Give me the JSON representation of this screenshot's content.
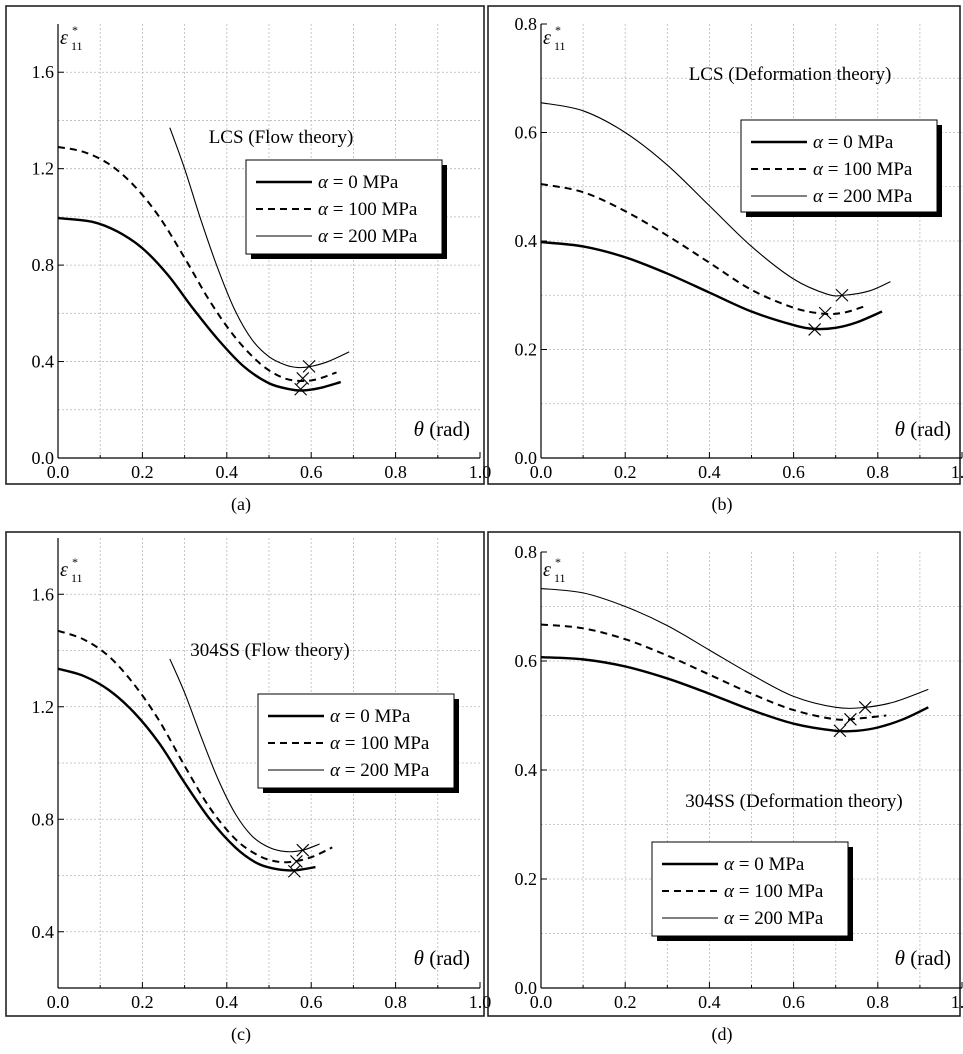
{
  "chart_data": [
    {
      "type": "line",
      "panel_label": "(a)",
      "annotation": "LCS (Flow theory)",
      "ylabel_symbol": "ε",
      "ylabel_sup": "*",
      "ylabel_sub": "11",
      "xlabel_symbol": "θ",
      "xlabel_unit": "(rad)",
      "xlim": [
        0,
        1.0
      ],
      "ylim": [
        0,
        1.8
      ],
      "xticks": [
        "0.0",
        "0.2",
        "0.4",
        "0.6",
        "0.8",
        "1.0"
      ],
      "yticks": [
        "0.0",
        "0.4",
        "0.8",
        "1.2",
        "1.6"
      ],
      "yticks_values": [
        0.0,
        0.4,
        0.8,
        1.2,
        1.6
      ],
      "grid": true,
      "legend_position": "upper-right",
      "series": [
        {
          "name": "α = 0 MPa",
          "style": "solid-thick",
          "x": [
            0.0,
            0.08,
            0.14,
            0.2,
            0.26,
            0.32,
            0.38,
            0.44,
            0.5,
            0.55,
            0.58,
            0.62,
            0.67
          ],
          "y": [
            0.995,
            0.98,
            0.94,
            0.87,
            0.76,
            0.62,
            0.49,
            0.38,
            0.31,
            0.285,
            0.28,
            0.29,
            0.315
          ],
          "critical": [
            0.575,
            0.285
          ]
        },
        {
          "name": "α = 100 MPa",
          "style": "dashed",
          "x": [
            0.0,
            0.06,
            0.12,
            0.18,
            0.24,
            0.3,
            0.36,
            0.42,
            0.48,
            0.53,
            0.57,
            0.61,
            0.66
          ],
          "y": [
            1.29,
            1.27,
            1.22,
            1.13,
            1.0,
            0.83,
            0.65,
            0.5,
            0.39,
            0.335,
            0.32,
            0.325,
            0.355
          ],
          "critical": [
            0.58,
            0.33
          ]
        },
        {
          "name": "α = 200 MPa",
          "style": "solid-thin",
          "x": [
            0.265,
            0.3,
            0.34,
            0.38,
            0.42,
            0.46,
            0.5,
            0.54,
            0.57,
            0.6,
            0.64,
            0.69
          ],
          "y": [
            1.37,
            1.2,
            0.98,
            0.78,
            0.61,
            0.49,
            0.42,
            0.385,
            0.375,
            0.38,
            0.4,
            0.44
          ],
          "critical": [
            0.595,
            0.38
          ]
        }
      ]
    },
    {
      "type": "line",
      "panel_label": "(b)",
      "annotation": "LCS (Deformation theory)",
      "ylabel_symbol": "ε",
      "ylabel_sup": "*",
      "ylabel_sub": "11",
      "xlabel_symbol": "θ",
      "xlabel_unit": "(rad)",
      "xlim": [
        0,
        1.0
      ],
      "ylim": [
        0,
        0.8
      ],
      "xticks": [
        "0.0",
        "0.2",
        "0.4",
        "0.6",
        "0.8",
        "1.0"
      ],
      "yticks": [
        "0.0",
        "0.2",
        "0.4",
        "0.6",
        "0.8"
      ],
      "yticks_values": [
        0.0,
        0.2,
        0.4,
        0.6,
        0.8
      ],
      "grid": true,
      "legend_position": "upper-right",
      "series": [
        {
          "name": "α = 0 MPa",
          "style": "solid-thick",
          "x": [
            0.0,
            0.1,
            0.2,
            0.3,
            0.4,
            0.5,
            0.6,
            0.65,
            0.7,
            0.75,
            0.81
          ],
          "y": [
            0.398,
            0.39,
            0.37,
            0.34,
            0.305,
            0.27,
            0.245,
            0.238,
            0.24,
            0.25,
            0.27
          ],
          "critical": [
            0.65,
            0.237
          ]
        },
        {
          "name": "α = 100 MPa",
          "style": "dashed",
          "x": [
            0.0,
            0.1,
            0.2,
            0.3,
            0.4,
            0.5,
            0.6,
            0.67,
            0.72,
            0.77
          ],
          "y": [
            0.505,
            0.49,
            0.455,
            0.41,
            0.36,
            0.31,
            0.277,
            0.266,
            0.268,
            0.28
          ],
          "critical": [
            0.675,
            0.267
          ]
        },
        {
          "name": "α = 200 MPa",
          "style": "solid-thin",
          "x": [
            0.0,
            0.1,
            0.2,
            0.3,
            0.4,
            0.5,
            0.6,
            0.68,
            0.72,
            0.78,
            0.83
          ],
          "y": [
            0.655,
            0.64,
            0.6,
            0.54,
            0.465,
            0.39,
            0.33,
            0.302,
            0.3,
            0.308,
            0.325
          ],
          "critical": [
            0.715,
            0.3
          ]
        }
      ]
    },
    {
      "type": "line",
      "panel_label": "(c)",
      "annotation": "304SS (Flow theory)",
      "ylabel_symbol": "ε",
      "ylabel_sup": "*",
      "ylabel_sub": "11",
      "xlabel_symbol": "θ",
      "xlabel_unit": "(rad)",
      "xlim": [
        0,
        1.0
      ],
      "ylim": [
        0.2,
        1.8
      ],
      "xticks": [
        "0.0",
        "0.2",
        "0.4",
        "0.6",
        "0.8",
        "1.0"
      ],
      "yticks": [
        "0.4",
        "0.8",
        "1.2",
        "1.6"
      ],
      "yticks_values": [
        0.4,
        0.8,
        1.2,
        1.6
      ],
      "grid": true,
      "legend_position": "upper-right",
      "series": [
        {
          "name": "α = 0 MPa",
          "style": "solid-thick",
          "x": [
            0.0,
            0.06,
            0.12,
            0.18,
            0.24,
            0.3,
            0.36,
            0.42,
            0.47,
            0.51,
            0.55,
            0.58,
            0.61
          ],
          "y": [
            1.335,
            1.31,
            1.26,
            1.18,
            1.07,
            0.93,
            0.8,
            0.7,
            0.645,
            0.625,
            0.618,
            0.622,
            0.63
          ],
          "critical": [
            0.56,
            0.615
          ]
        },
        {
          "name": "α = 100 MPa",
          "style": "dashed",
          "x": [
            0.0,
            0.06,
            0.12,
            0.18,
            0.24,
            0.3,
            0.36,
            0.42,
            0.47,
            0.51,
            0.55,
            0.6,
            0.65
          ],
          "y": [
            1.47,
            1.44,
            1.38,
            1.28,
            1.15,
            0.99,
            0.84,
            0.73,
            0.675,
            0.652,
            0.648,
            0.665,
            0.7
          ],
          "critical": [
            0.565,
            0.65
          ]
        },
        {
          "name": "α = 200 MPa",
          "style": "solid-thin",
          "x": [
            0.265,
            0.3,
            0.34,
            0.38,
            0.42,
            0.46,
            0.5,
            0.54,
            0.58,
            0.62
          ],
          "y": [
            1.37,
            1.25,
            1.09,
            0.94,
            0.82,
            0.74,
            0.7,
            0.685,
            0.69,
            0.712
          ],
          "critical": [
            0.58,
            0.69
          ]
        }
      ]
    },
    {
      "type": "line",
      "panel_label": "(d)",
      "annotation": "304SS (Deformation theory)",
      "ylabel_symbol": "ε",
      "ylabel_sup": "*",
      "ylabel_sub": "11",
      "xlabel_symbol": "θ",
      "xlabel_unit": "(rad)",
      "xlim": [
        0,
        1.0
      ],
      "ylim": [
        0,
        0.8
      ],
      "xticks": [
        "0.0",
        "0.2",
        "0.4",
        "0.6",
        "0.8",
        "1.0"
      ],
      "yticks": [
        "0.0",
        "0.2",
        "0.4",
        "0.6",
        "0.8"
      ],
      "yticks_values": [
        0.0,
        0.2,
        0.4,
        0.6,
        0.8
      ],
      "grid": true,
      "legend_position": "lower-center",
      "series": [
        {
          "name": "α = 0 MPa",
          "style": "solid-thick",
          "x": [
            0.0,
            0.1,
            0.2,
            0.3,
            0.4,
            0.5,
            0.6,
            0.7,
            0.75,
            0.8,
            0.86,
            0.92
          ],
          "y": [
            0.607,
            0.603,
            0.59,
            0.568,
            0.54,
            0.51,
            0.485,
            0.472,
            0.472,
            0.478,
            0.493,
            0.515
          ],
          "critical": [
            0.71,
            0.472
          ]
        },
        {
          "name": "α = 100 MPa",
          "style": "dashed",
          "x": [
            0.0,
            0.1,
            0.2,
            0.3,
            0.4,
            0.5,
            0.6,
            0.7,
            0.76,
            0.82
          ],
          "y": [
            0.667,
            0.66,
            0.64,
            0.61,
            0.575,
            0.54,
            0.51,
            0.493,
            0.495,
            0.5
          ],
          "critical": [
            0.735,
            0.493
          ]
        },
        {
          "name": "α = 200 MPa",
          "style": "solid-thin",
          "x": [
            0.0,
            0.1,
            0.2,
            0.3,
            0.4,
            0.5,
            0.6,
            0.7,
            0.77,
            0.84,
            0.92
          ],
          "y": [
            0.733,
            0.725,
            0.7,
            0.665,
            0.62,
            0.575,
            0.535,
            0.515,
            0.515,
            0.525,
            0.548
          ],
          "critical": [
            0.77,
            0.515
          ]
        }
      ]
    }
  ]
}
